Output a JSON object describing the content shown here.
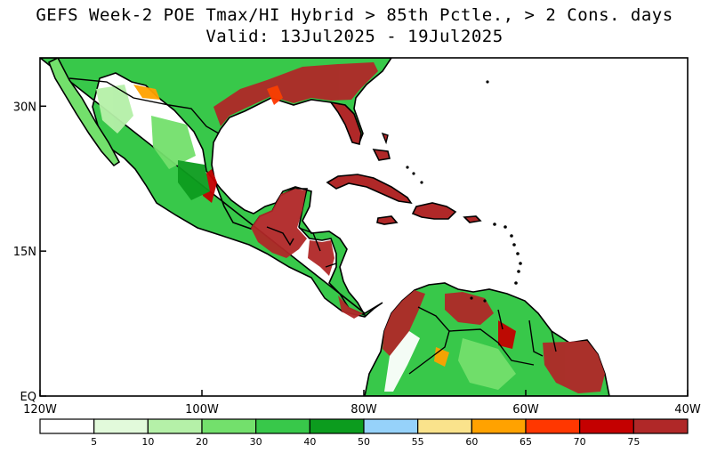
{
  "title": {
    "line1": "GEFS Week-2 POE Tmax/HI Hybrid > 85th Pctle., > 2 Cons. days",
    "line2": "Valid: 13Jul2025 - 19Jul2025"
  },
  "map": {
    "lon_range": [
      -120,
      -40
    ],
    "lat_range": [
      0,
      35
    ],
    "lon_ticks": [
      {
        "lon": -120,
        "label": "120W"
      },
      {
        "lon": -100,
        "label": "100W"
      },
      {
        "lon": -80,
        "label": "80W"
      },
      {
        "lon": -60,
        "label": "60W"
      },
      {
        "lon": -40,
        "label": "40W"
      }
    ],
    "lat_ticks": [
      {
        "lat": 0,
        "label": "EQ"
      },
      {
        "lat": 15,
        "label": "15N"
      },
      {
        "lat": 30,
        "label": "30N"
      }
    ],
    "colors": {
      "ocean": "#ffffff",
      "land_default": "#2fb84a",
      "coast": "#000000"
    }
  },
  "colorbar": {
    "labels": [
      "5",
      "10",
      "20",
      "30",
      "40",
      "50",
      "55",
      "60",
      "65",
      "70",
      "75"
    ],
    "colors": [
      "#ffffff",
      "#e2fadb",
      "#b5f0a8",
      "#73e06c",
      "#38c84a",
      "#0c9c1e",
      "#96d2fa",
      "#fae38c",
      "#ffa200",
      "#ff3700",
      "#c40000",
      "#b02828"
    ]
  }
}
